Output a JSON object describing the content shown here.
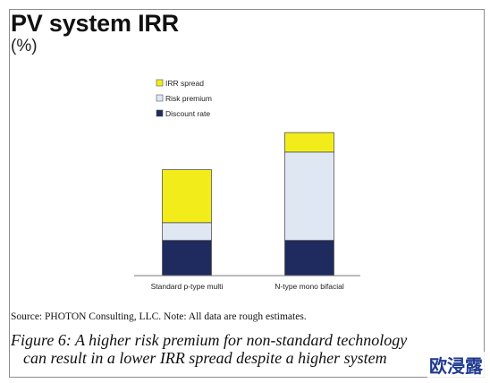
{
  "title": "PV system IRR",
  "subtitle": "(%)",
  "source": "Source: PHOTON Consulting, LLC. Note: All data are rough estimates.",
  "caption_line1": "Figure 6: A higher risk premium for non-standard technology",
  "caption_line2": "can result in a lower IRR spread despite a higher system",
  "watermark": "欧浸露",
  "colors": {
    "irr_spread": "#f2ed1a",
    "risk_premium": "#dfe7f3",
    "discount_rate": "#1f2a5e",
    "bar_outline": "#555555",
    "axis": "#7a7a7a"
  },
  "chart_data": {
    "type": "bar",
    "stacked": true,
    "title": "PV system IRR",
    "ylabel": "(%)",
    "categories": [
      "Standard p-type multi",
      "N-type mono bifacial"
    ],
    "series": [
      {
        "name": "Discount rate",
        "values": [
          6,
          6
        ]
      },
      {
        "name": "Risk premium",
        "values": [
          3,
          15
        ]
      },
      {
        "name": "IRR spread",
        "values": [
          9,
          3.3
        ]
      }
    ],
    "legend_order": [
      "IRR spread",
      "Risk premium",
      "Discount rate"
    ],
    "ylim": [
      0,
      26
    ],
    "grid": false,
    "legend_position": "top-left"
  }
}
